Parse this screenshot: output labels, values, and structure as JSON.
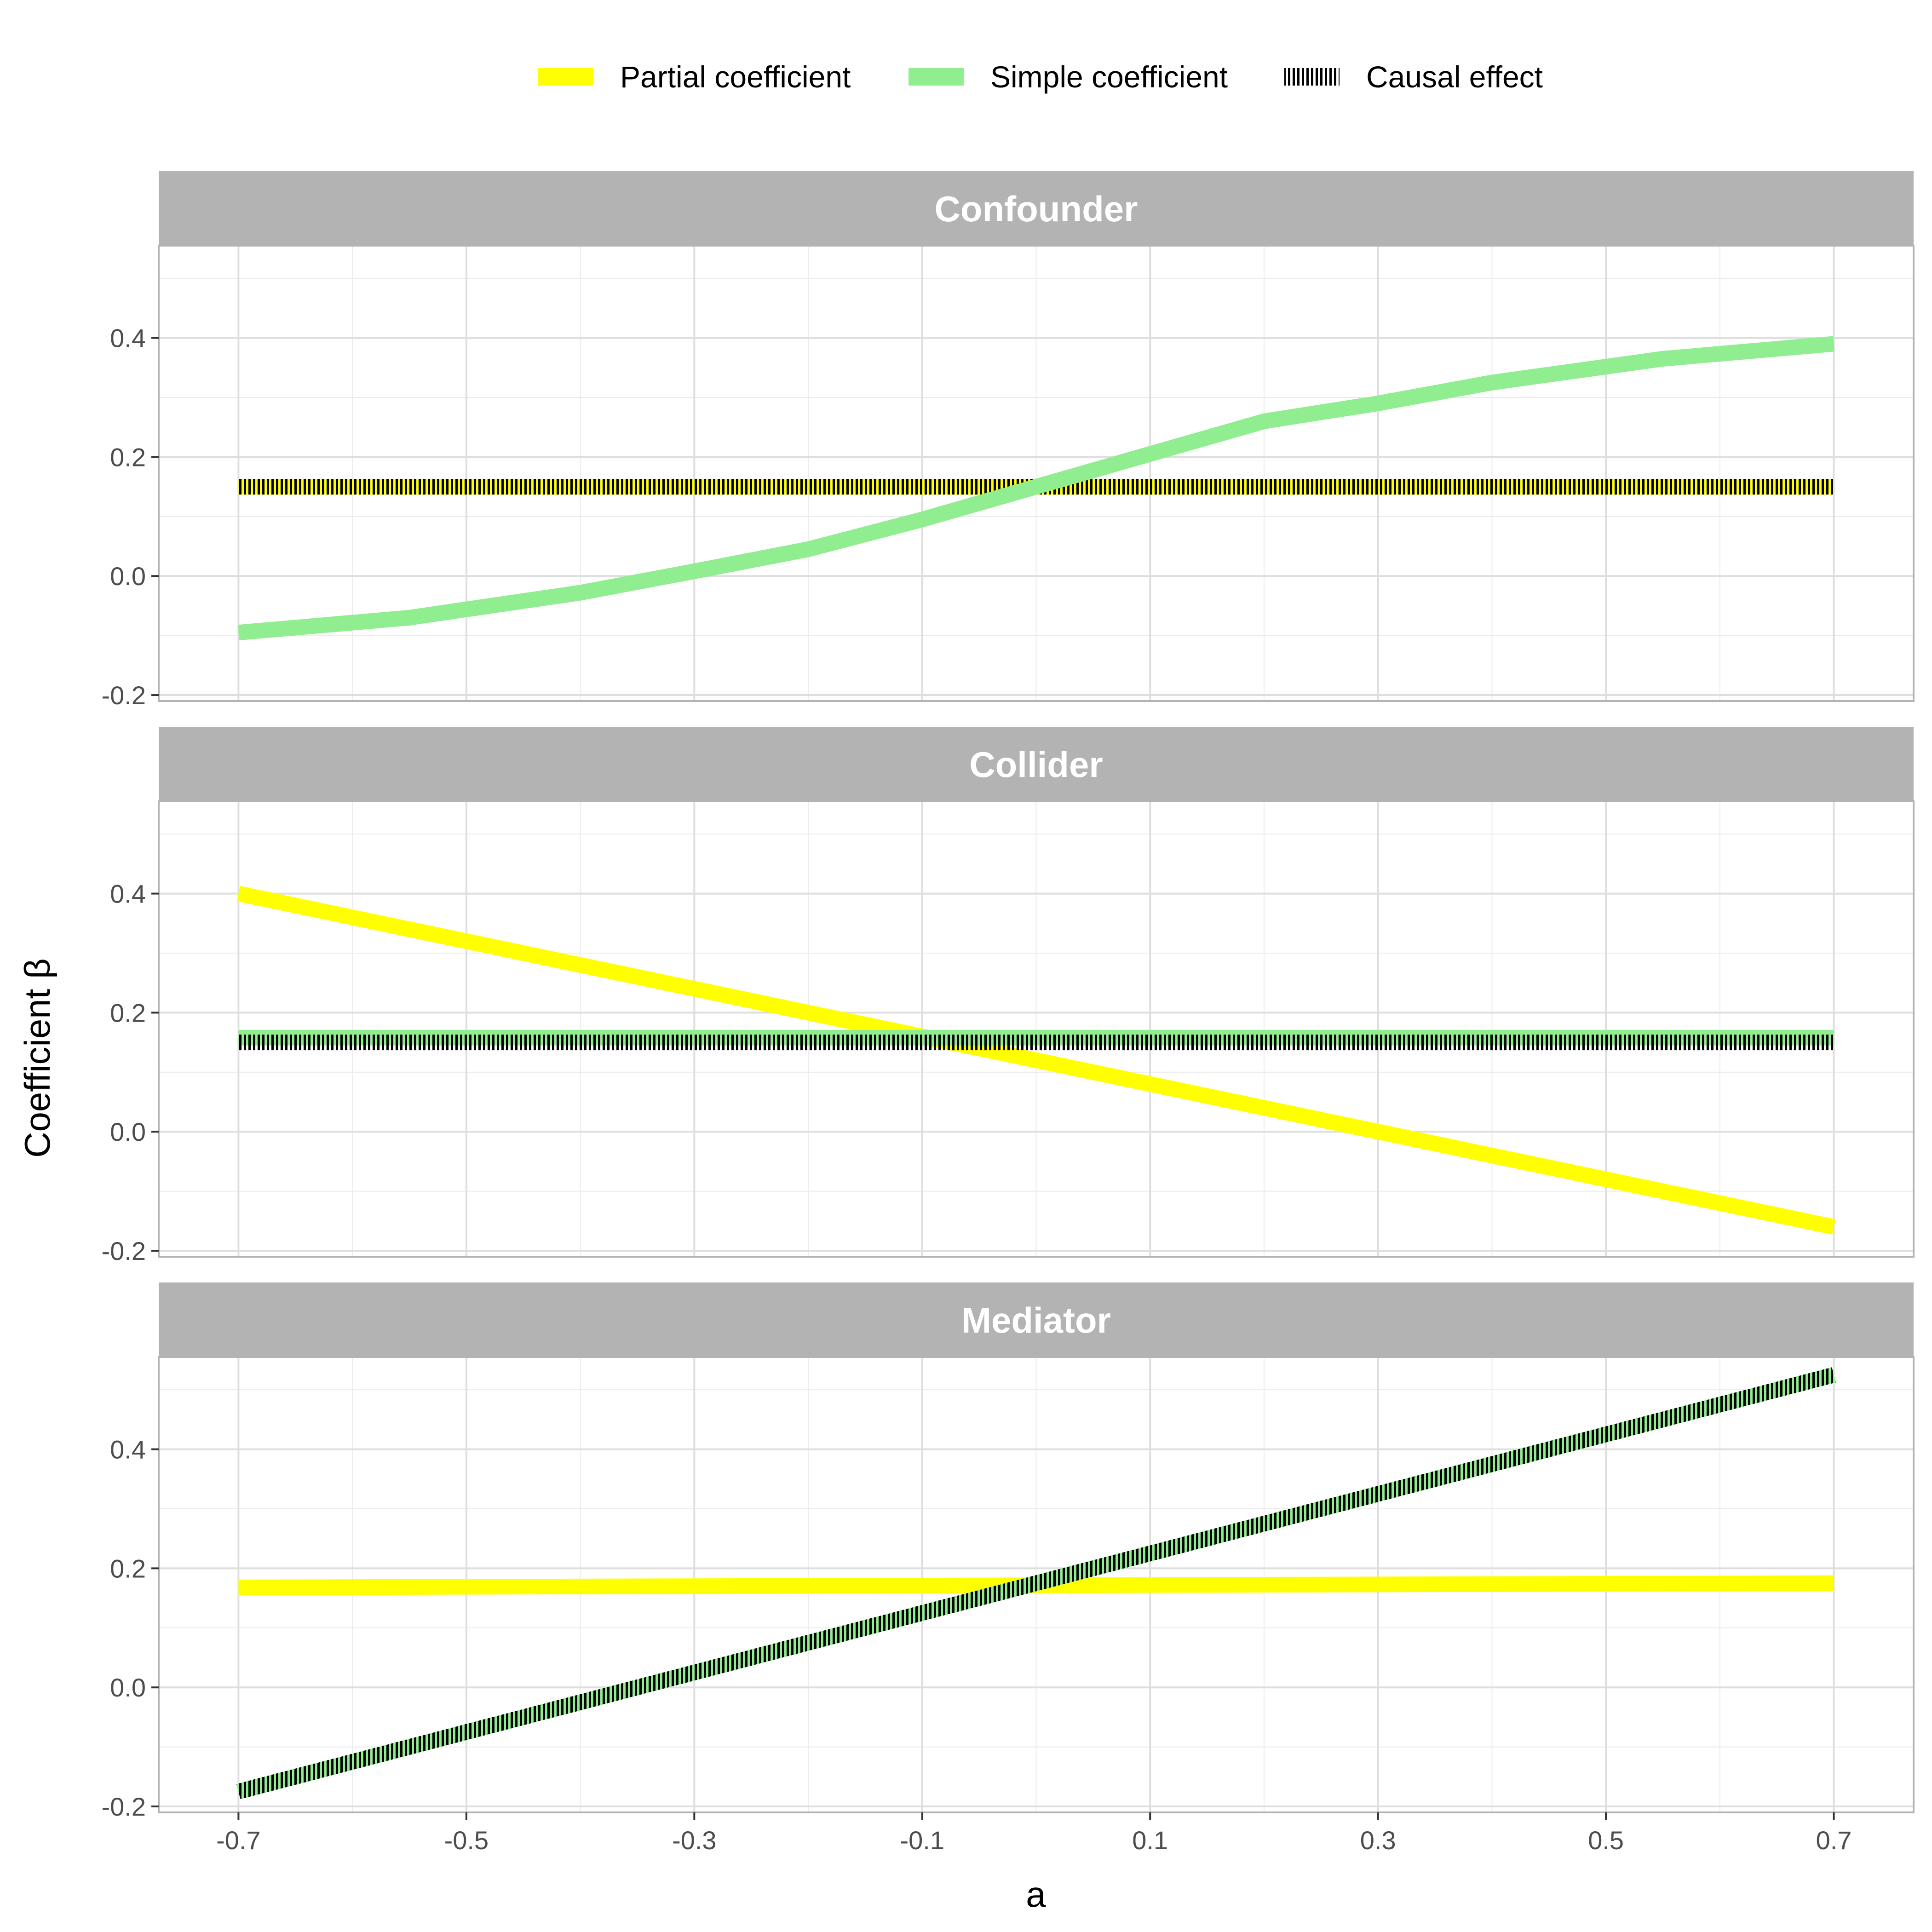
{
  "chart_data": {
    "type": "line",
    "xlabel": "a",
    "ylabel": "Coefficient  β",
    "xlim": [
      -0.77,
      0.77
    ],
    "ylim": [
      -0.21,
      0.555
    ],
    "x_ticks": [
      -0.7,
      -0.5,
      -0.3,
      -0.1,
      0.1,
      0.3,
      0.5,
      0.7
    ],
    "x_tick_labels": [
      "-0.7",
      "-0.5",
      "-0.3",
      "-0.1",
      "0.1",
      "0.3",
      "0.5",
      "0.7"
    ],
    "y_ticks": [
      -0.2,
      0.0,
      0.2,
      0.4
    ],
    "y_tick_labels": [
      "-0.2",
      "0.0",
      "0.2",
      "0.4"
    ],
    "grid": true,
    "legend_position": "top",
    "legend": [
      {
        "name": "Partial coefficient",
        "color": "#FFFF00",
        "style": "solid"
      },
      {
        "name": "Simple coefficient",
        "color": "#90EE90",
        "style": "solid"
      },
      {
        "name": "Causal effect",
        "color": "#000000",
        "style": "dotted"
      }
    ],
    "panels": [
      {
        "title": "Confounder",
        "series": [
          {
            "name": "Partial coefficient",
            "x": [
              -0.7,
              0.7
            ],
            "y": [
              0.15,
              0.15
            ]
          },
          {
            "name": "Causal effect",
            "x": [
              -0.7,
              0.7
            ],
            "y": [
              0.15,
              0.15
            ]
          },
          {
            "name": "Simple coefficient",
            "x": [
              -0.7,
              -0.55,
              -0.4,
              -0.3,
              -0.2,
              -0.1,
              0.0,
              0.1,
              0.2,
              0.3,
              0.4,
              0.55,
              0.7
            ],
            "y": [
              -0.095,
              -0.07,
              -0.028,
              0.008,
              0.045,
              0.095,
              0.15,
              0.205,
              0.26,
              0.29,
              0.325,
              0.365,
              0.39
            ]
          }
        ]
      },
      {
        "title": "Collider",
        "series": [
          {
            "name": "Partial coefficient",
            "x": [
              -0.7,
              -0.5,
              -0.3,
              -0.1,
              0.1,
              0.3,
              0.5,
              0.7
            ],
            "y": [
              0.4,
              0.32,
              0.24,
              0.16,
              0.08,
              0.0,
              -0.08,
              -0.16
            ]
          },
          {
            "name": "Simple coefficient",
            "x": [
              -0.7,
              0.7
            ],
            "y": [
              0.158,
              0.158
            ]
          },
          {
            "name": "Causal effect",
            "x": [
              -0.7,
              0.7
            ],
            "y": [
              0.15,
              0.15
            ]
          }
        ]
      },
      {
        "title": "Mediator",
        "series": [
          {
            "name": "Partial coefficient",
            "x": [
              -0.7,
              0.7
            ],
            "y": [
              0.168,
              0.175
            ]
          },
          {
            "name": "Simple coefficient",
            "x": [
              -0.7,
              0.7
            ],
            "y": [
              -0.175,
              0.525
            ]
          },
          {
            "name": "Causal effect",
            "x": [
              -0.7,
              0.7
            ],
            "y": [
              -0.175,
              0.525
            ]
          }
        ]
      }
    ]
  }
}
